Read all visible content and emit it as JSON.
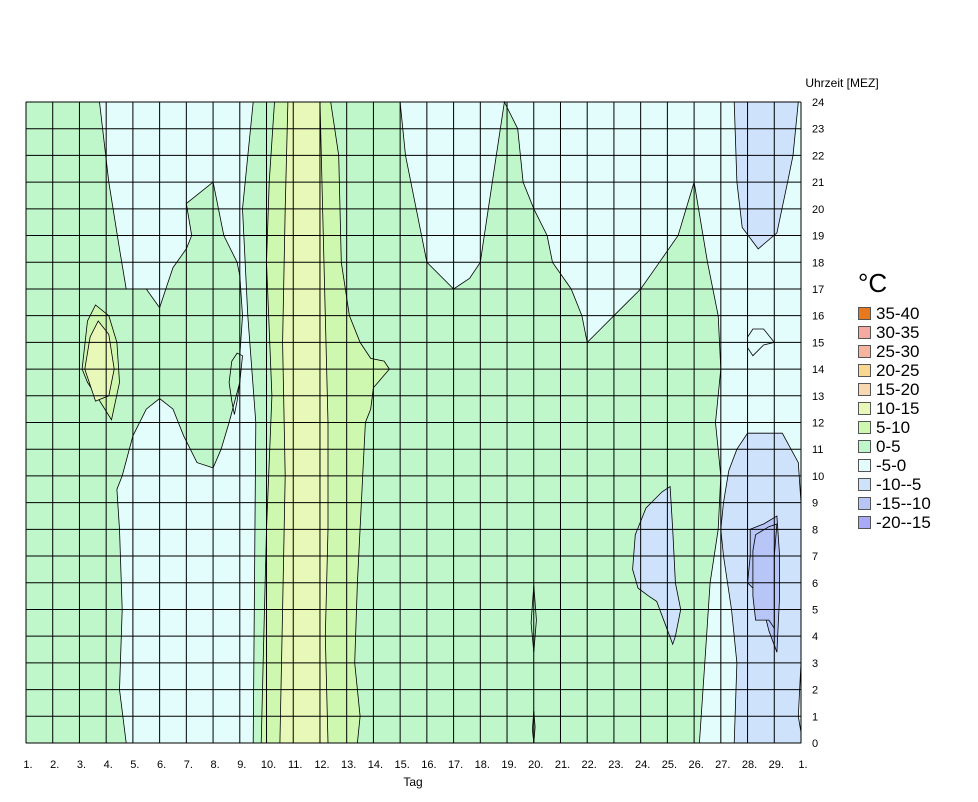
{
  "chart_data": {
    "type": "contour",
    "xlabel": "Tag",
    "ylabel": "Uhrzeit [MEZ]",
    "x_tick_labels": [
      "1.",
      "2.",
      "3.",
      "4.",
      "5.",
      "6.",
      "7.",
      "8.",
      "9.",
      "10.",
      "11.",
      "12.",
      "13.",
      "14.",
      "15.",
      "16.",
      "17.",
      "18.",
      "19.",
      "20.",
      "21.",
      "22.",
      "23.",
      "24.",
      "25.",
      "26.",
      "27.",
      "28.",
      "29.",
      "1."
    ],
    "y_ticks": [
      0,
      1,
      2,
      3,
      4,
      5,
      6,
      7,
      8,
      9,
      10,
      11,
      12,
      13,
      14,
      15,
      16,
      17,
      18,
      19,
      20,
      21,
      22,
      23,
      24
    ],
    "xlim": [
      1,
      30
    ],
    "ylim": [
      0,
      24
    ],
    "grid": true,
    "legend": {
      "title": "°C",
      "placement": "right",
      "entries": [
        {
          "label": "35-40",
          "color": "#e8781e"
        },
        {
          "label": "30-35",
          "color": "#f4aaa0"
        },
        {
          "label": "25-30",
          "color": "#f4b4a0"
        },
        {
          "label": "20-25",
          "color": "#f8d890"
        },
        {
          "label": "15-20",
          "color": "#f8d8b0"
        },
        {
          "label": "10-15",
          "color": "#e8f8b8"
        },
        {
          "label": "5-10",
          "color": "#cef7b0"
        },
        {
          "label": "0-5",
          "color": "#bff7cb"
        },
        {
          "label": "-5-0",
          "color": "#e3fcfc"
        },
        {
          "label": "-10--5",
          "color": "#cfe2fc"
        },
        {
          "label": "-15--10",
          "color": "#b7c6f7"
        },
        {
          "label": "-20--15",
          "color": "#a8aaf7"
        }
      ]
    },
    "regions": [
      {
        "band": "0-5",
        "points": [
          [
            1,
            0
          ],
          [
            1,
            24
          ],
          [
            3.75,
            24
          ],
          [
            4.1,
            21
          ],
          [
            4.5,
            18.5
          ],
          [
            4.75,
            17
          ],
          [
            5.5,
            17
          ],
          [
            6,
            16.3
          ],
          [
            6.3,
            17.2
          ],
          [
            6.5,
            17.8
          ],
          [
            7,
            18.5
          ],
          [
            7.2,
            19
          ],
          [
            7,
            20.2
          ],
          [
            8,
            21
          ],
          [
            8.4,
            19
          ],
          [
            8.9,
            18
          ],
          [
            9,
            17.5
          ],
          [
            9.1,
            16
          ],
          [
            9,
            14.5
          ],
          [
            9,
            13.5
          ],
          [
            8.6,
            12
          ],
          [
            8.3,
            11
          ],
          [
            8,
            10.3
          ],
          [
            7.4,
            10.5
          ],
          [
            6.9,
            11.5
          ],
          [
            6.5,
            12.5
          ],
          [
            6,
            12.9
          ],
          [
            5.5,
            12.5
          ],
          [
            5,
            11.5
          ],
          [
            4.6,
            10
          ],
          [
            4.4,
            9.5
          ],
          [
            4.5,
            8
          ],
          [
            4.6,
            5
          ],
          [
            4.5,
            2
          ],
          [
            4.75,
            0
          ]
        ]
      },
      {
        "band": "0-5",
        "points": [
          [
            9.5,
            0
          ],
          [
            9.6,
            12
          ],
          [
            9.3,
            16
          ],
          [
            9.1,
            20
          ],
          [
            9.5,
            24
          ],
          [
            15,
            24
          ],
          [
            15.2,
            22
          ],
          [
            15.6,
            20
          ],
          [
            16,
            18
          ],
          [
            17,
            17
          ],
          [
            17.6,
            17.4
          ],
          [
            18,
            18
          ],
          [
            18.3,
            20
          ],
          [
            18.6,
            22
          ],
          [
            18.9,
            24
          ],
          [
            19.4,
            23
          ],
          [
            19.6,
            21
          ],
          [
            20,
            20
          ],
          [
            20.5,
            19
          ],
          [
            20.7,
            18
          ],
          [
            21.4,
            17
          ],
          [
            21.8,
            16
          ],
          [
            22,
            15
          ],
          [
            22.5,
            15.5
          ],
          [
            23,
            16
          ],
          [
            23.5,
            16.5
          ],
          [
            24,
            17
          ],
          [
            24.7,
            18
          ],
          [
            25.4,
            19
          ],
          [
            26,
            21
          ],
          [
            26.5,
            18
          ],
          [
            26.9,
            16
          ],
          [
            27,
            14
          ],
          [
            26.8,
            12
          ],
          [
            27,
            10
          ],
          [
            26.9,
            8
          ],
          [
            26.6,
            6
          ],
          [
            26.4,
            3
          ],
          [
            26.2,
            0
          ]
        ]
      },
      {
        "band": "5-10",
        "points": [
          [
            3.1,
            14
          ],
          [
            3.3,
            15.8
          ],
          [
            3.6,
            16.4
          ],
          [
            4.1,
            16
          ],
          [
            4.4,
            15
          ],
          [
            4.5,
            13.5
          ],
          [
            4.2,
            12.1
          ],
          [
            3.7,
            12.9
          ],
          [
            3.3,
            13.5
          ]
        ]
      },
      {
        "band": "5-10",
        "points": [
          [
            9.8,
            0
          ],
          [
            9.9,
            4
          ],
          [
            10,
            8
          ],
          [
            10.2,
            13
          ],
          [
            10,
            18
          ],
          [
            10.1,
            21
          ],
          [
            10.3,
            24
          ],
          [
            12.4,
            24
          ],
          [
            12.7,
            22
          ],
          [
            12.8,
            18
          ],
          [
            13.1,
            16
          ],
          [
            13.5,
            15
          ],
          [
            13.9,
            14.4
          ],
          [
            14.4,
            14.3
          ],
          [
            14.6,
            14
          ],
          [
            14,
            13.3
          ],
          [
            13.9,
            12.5
          ],
          [
            13.7,
            12
          ],
          [
            13.6,
            10
          ],
          [
            13.4,
            6
          ],
          [
            13.3,
            3
          ],
          [
            13.5,
            1
          ],
          [
            13.4,
            0
          ]
        ]
      },
      {
        "band": "10-15",
        "points": [
          [
            3.2,
            14
          ],
          [
            3.4,
            15.2
          ],
          [
            3.7,
            15.8
          ],
          [
            4.1,
            15.3
          ],
          [
            4.3,
            14
          ],
          [
            4.1,
            13
          ],
          [
            3.6,
            12.8
          ]
        ]
      },
      {
        "band": "10-15",
        "points": [
          [
            10.5,
            0
          ],
          [
            10.6,
            5
          ],
          [
            10.7,
            10
          ],
          [
            10.6,
            15
          ],
          [
            10.7,
            20
          ],
          [
            10.8,
            24
          ],
          [
            12,
            24
          ],
          [
            12.1,
            20
          ],
          [
            12.2,
            16
          ],
          [
            12.3,
            12
          ],
          [
            12.3,
            8
          ],
          [
            12.2,
            4
          ],
          [
            12.3,
            0
          ]
        ]
      },
      {
        "band": "-10--5",
        "points": [
          [
            27.5,
            24
          ],
          [
            27.6,
            21
          ],
          [
            27.8,
            19.3
          ],
          [
            28.4,
            18.5
          ],
          [
            29.1,
            19.1
          ],
          [
            29.5,
            21
          ],
          [
            29.7,
            22
          ],
          [
            29.9,
            24
          ]
        ]
      },
      {
        "band": "-10--5",
        "points": [
          [
            23.7,
            6.5
          ],
          [
            23.8,
            7.8
          ],
          [
            24.2,
            8.8
          ],
          [
            24.8,
            9.4
          ],
          [
            25.1,
            9.6
          ],
          [
            25.2,
            8
          ],
          [
            25.3,
            6
          ],
          [
            25.5,
            5
          ],
          [
            25.3,
            4
          ],
          [
            25.2,
            3.7
          ],
          [
            24.9,
            4.5
          ],
          [
            24.6,
            5.3
          ],
          [
            24.3,
            5.5
          ],
          [
            23.9,
            5.8
          ]
        ]
      },
      {
        "band": "-10--5",
        "points": [
          [
            27.5,
            0
          ],
          [
            27.6,
            3
          ],
          [
            27.4,
            5
          ],
          [
            27.1,
            7
          ],
          [
            27,
            8
          ],
          [
            27.1,
            9
          ],
          [
            27.3,
            10.2
          ],
          [
            27.6,
            11
          ],
          [
            28,
            11.6
          ],
          [
            29.3,
            11.6
          ],
          [
            29.9,
            10.5
          ],
          [
            30.1,
            9
          ],
          [
            30.2,
            7
          ],
          [
            30.1,
            5
          ],
          [
            30,
            3
          ],
          [
            29.9,
            1
          ],
          [
            30.3,
            0.4
          ],
          [
            30.6,
            0.3
          ],
          [
            30.7,
            0
          ]
        ]
      },
      {
        "band": "-15--10",
        "points": [
          [
            28,
            6
          ],
          [
            28.1,
            7
          ],
          [
            28.1,
            8
          ],
          [
            28.6,
            8.2
          ],
          [
            29.1,
            8.5
          ],
          [
            29.2,
            7
          ],
          [
            29.2,
            5.5
          ],
          [
            29.1,
            3.4
          ],
          [
            28.8,
            4.2
          ],
          [
            28.6,
            5
          ],
          [
            28.2,
            5.8
          ]
        ]
      },
      {
        "band": "-15--10",
        "points": [
          [
            28.3,
            4.6
          ],
          [
            28.2,
            5.5
          ],
          [
            28.2,
            7.2
          ],
          [
            28.3,
            7.8
          ],
          [
            28.8,
            8.1
          ],
          [
            29.1,
            8.2
          ],
          [
            29,
            7
          ],
          [
            29,
            5
          ],
          [
            29,
            4.3
          ],
          [
            28.8,
            4.6
          ]
        ]
      }
    ],
    "contour_lines": [
      [
        [
          8.8,
          12.3
        ],
        [
          8.7,
          12.8
        ],
        [
          8.6,
          13.5
        ],
        [
          8.7,
          14.3
        ],
        [
          8.9,
          14.6
        ],
        [
          9.1,
          14.5
        ],
        [
          9,
          13.5
        ],
        [
          8.9,
          12.8
        ],
        [
          8.8,
          12.3
        ]
      ],
      [
        [
          20,
          5.9
        ],
        [
          19.9,
          4.5
        ],
        [
          20,
          3.4
        ],
        [
          20.1,
          4.6
        ],
        [
          20,
          5.9
        ]
      ],
      [
        [
          20,
          1.2
        ],
        [
          19.95,
          0.5
        ],
        [
          20,
          0
        ],
        [
          20.05,
          0.6
        ],
        [
          20,
          1.2
        ]
      ],
      [
        [
          28,
          15.2
        ],
        [
          28.2,
          15.5
        ],
        [
          28.6,
          15.5
        ],
        [
          29,
          15
        ],
        [
          28.6,
          14.9
        ],
        [
          28.2,
          14.5
        ],
        [
          28,
          14.8
        ],
        [
          28,
          15.2
        ]
      ]
    ]
  }
}
